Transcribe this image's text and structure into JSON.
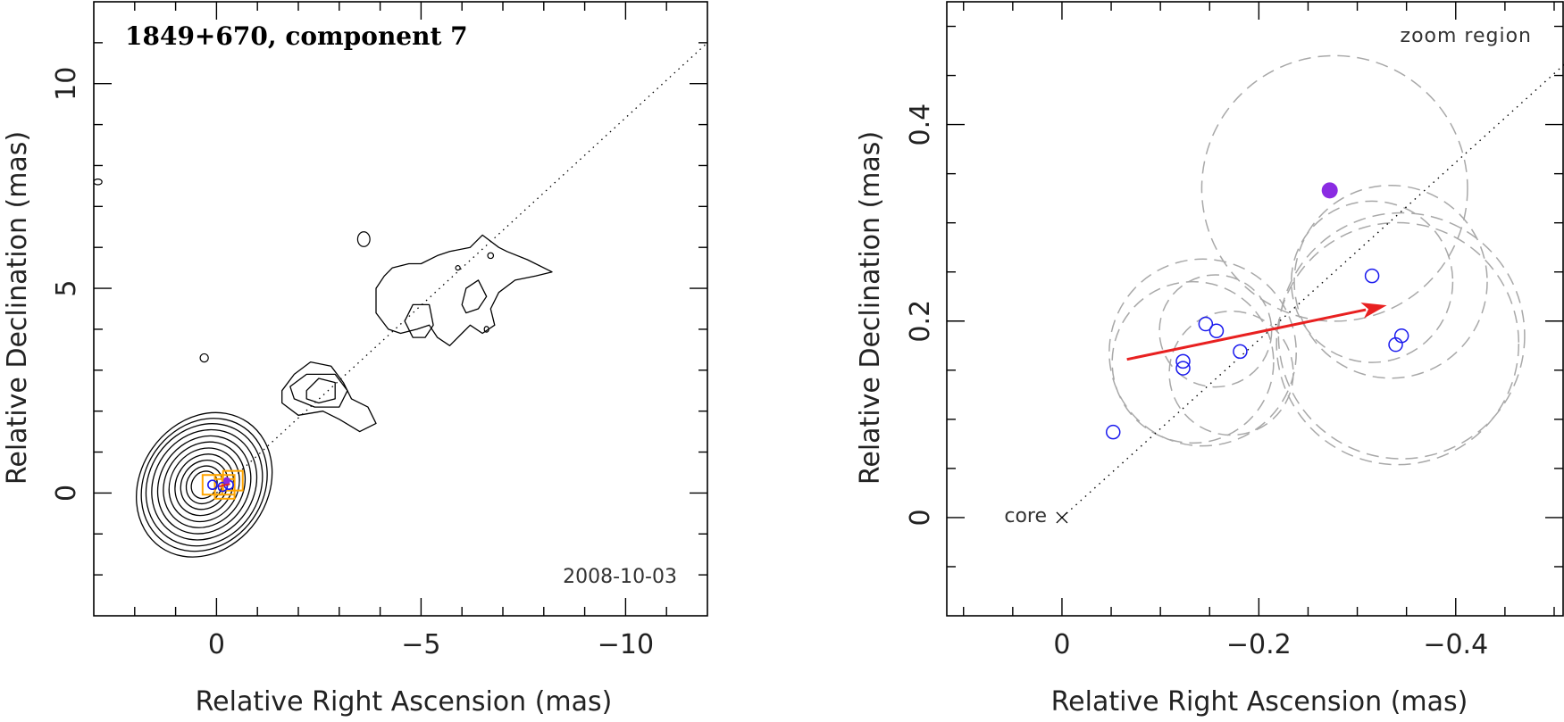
{
  "chart_data": [
    {
      "type": "scatter",
      "title": "1849+670, component 7",
      "annotation": "2008-10-03",
      "xlabel": "Relative Right Ascension (mas)",
      "ylabel": "Relative Declination (mas)",
      "xlim": [
        3,
        -12
      ],
      "ylim": [
        -3,
        12
      ],
      "xticks": [
        0,
        -5,
        -10
      ],
      "yticks": [
        0,
        5,
        10
      ],
      "grid": false,
      "reference_line": {
        "style": "dotted",
        "from": [
          0,
          0
        ],
        "to": [
          -12,
          11
        ]
      },
      "contours": [
        {
          "kind": "core",
          "center": [
            0.3,
            0.2
          ],
          "levels": [
            {
              "rx": 1.55,
              "ry": 1.55
            },
            {
              "rx": 1.45,
              "ry": 1.42
            },
            {
              "rx": 1.35,
              "ry": 1.3
            },
            {
              "rx": 1.22,
              "ry": 1.17
            },
            {
              "rx": 1.08,
              "ry": 1.04
            },
            {
              "rx": 0.95,
              "ry": 0.91
            },
            {
              "rx": 0.82,
              "ry": 0.78
            },
            {
              "rx": 0.68,
              "ry": 0.65
            },
            {
              "rx": 0.55,
              "ry": 0.52
            },
            {
              "rx": 0.42,
              "ry": 0.4
            },
            {
              "rx": 0.3,
              "ry": 0.29
            }
          ]
        },
        {
          "kind": "jet",
          "path": [
            [
              -1.6,
              2.5
            ],
            [
              -1.9,
              2.9
            ],
            [
              -2.3,
              3.2
            ],
            [
              -2.8,
              3.1
            ],
            [
              -3.1,
              2.7
            ],
            [
              -3.3,
              2.3
            ],
            [
              -3.7,
              2.1
            ],
            [
              -3.9,
              1.7
            ],
            [
              -3.5,
              1.5
            ],
            [
              -3.0,
              1.8
            ],
            [
              -2.6,
              2.0
            ],
            [
              -2.0,
              1.9
            ],
            [
              -1.6,
              2.2
            ]
          ]
        },
        {
          "kind": "jet",
          "path": [
            [
              -1.8,
              2.6
            ],
            [
              -2.2,
              2.9
            ],
            [
              -2.9,
              2.9
            ],
            [
              -3.2,
              2.5
            ],
            [
              -3.0,
              2.1
            ],
            [
              -2.4,
              2.1
            ],
            [
              -1.9,
              2.3
            ]
          ]
        },
        {
          "kind": "jet",
          "path": [
            [
              -2.2,
              2.5
            ],
            [
              -2.5,
              2.8
            ],
            [
              -2.9,
              2.7
            ],
            [
              -2.9,
              2.3
            ],
            [
              -2.5,
              2.2
            ],
            [
              -2.2,
              2.3
            ]
          ]
        },
        {
          "kind": "jet",
          "path": [
            [
              -3.9,
              4.4
            ],
            [
              -3.9,
              5.0
            ],
            [
              -4.1,
              5.3
            ],
            [
              -4.3,
              5.5
            ],
            [
              -4.7,
              5.6
            ],
            [
              -5.0,
              5.6
            ],
            [
              -5.4,
              5.8
            ],
            [
              -5.7,
              5.9
            ],
            [
              -6.2,
              6.0
            ],
            [
              -6.5,
              6.3
            ],
            [
              -6.9,
              6.0
            ],
            [
              -7.1,
              5.9
            ],
            [
              -7.6,
              5.7
            ],
            [
              -8.2,
              5.4
            ],
            [
              -7.8,
              5.3
            ],
            [
              -7.3,
              5.2
            ],
            [
              -6.9,
              4.9
            ],
            [
              -6.7,
              4.5
            ],
            [
              -6.8,
              4.1
            ],
            [
              -6.5,
              3.9
            ],
            [
              -6.2,
              4.1
            ],
            [
              -6.0,
              3.9
            ],
            [
              -5.7,
              3.6
            ],
            [
              -5.4,
              3.8
            ],
            [
              -5.2,
              4.1
            ],
            [
              -4.9,
              4.0
            ],
            [
              -4.5,
              3.9
            ],
            [
              -4.2,
              4.0
            ]
          ]
        },
        {
          "kind": "jet",
          "path": [
            [
              -4.6,
              4.2
            ],
            [
              -4.8,
              4.6
            ],
            [
              -5.2,
              4.6
            ],
            [
              -5.3,
              4.1
            ],
            [
              -5.1,
              3.8
            ],
            [
              -4.8,
              3.8
            ]
          ]
        },
        {
          "kind": "jet",
          "path": [
            [
              -6.0,
              4.6
            ],
            [
              -6.1,
              5.0
            ],
            [
              -6.4,
              5.2
            ],
            [
              -6.6,
              4.8
            ],
            [
              -6.4,
              4.5
            ],
            [
              -6.1,
              4.4
            ]
          ]
        },
        {
          "kind": "blob",
          "center": [
            -3.6,
            6.2
          ],
          "rx": 0.15,
          "ry": 0.18
        },
        {
          "kind": "blob",
          "center": [
            2.9,
            7.6
          ],
          "rx": 0.1,
          "ry": 0.07
        },
        {
          "kind": "blob",
          "center": [
            0.3,
            3.3
          ],
          "rx": 0.1,
          "ry": 0.1
        },
        {
          "kind": "blob",
          "center": [
            -6.7,
            5.8
          ],
          "rx": 0.07,
          "ry": 0.07
        },
        {
          "kind": "blob",
          "center": [
            -5.9,
            5.5
          ],
          "rx": 0.05,
          "ry": 0.05
        },
        {
          "kind": "blob",
          "center": [
            -6.6,
            4.0
          ],
          "rx": 0.05,
          "ry": 0.07
        }
      ],
      "markers": {
        "orange_squares": [
          [
            0.1,
            0.2
          ],
          [
            -0.2,
            0.2
          ],
          [
            -0.4,
            0.3
          ],
          [
            -0.2,
            0.1
          ]
        ],
        "blue_circles": [
          [
            0.1,
            0.2
          ],
          [
            -0.15,
            0.15
          ],
          [
            -0.3,
            0.2
          ]
        ],
        "purple_point": [
          -0.25,
          0.3
        ],
        "red_arrow": {
          "from": [
            -0.06,
            0.16
          ],
          "to": [
            -0.33,
            0.22
          ]
        }
      },
      "colors": {
        "contour": "#000000",
        "marker_orange": "#ffa500",
        "marker_blue": "#1a1aee",
        "marker_purple": "#8a2be2",
        "arrow": "#e82020"
      }
    },
    {
      "type": "scatter",
      "annotation": "zoom region",
      "core_label": "core",
      "xlabel": "Relative Right Ascension (mas)",
      "ylabel": "Relative Declination (mas)",
      "xlim": [
        0.117,
        -0.51
      ],
      "ylim": [
        -0.1,
        0.525
      ],
      "xticks": [
        0,
        -0.2,
        -0.4
      ],
      "xtick_labels": [
        "0",
        "−0.2",
        "−0.4"
      ],
      "yticks": [
        0,
        0.2,
        0.4
      ],
      "ytick_labels": [
        "0",
        "0.2",
        "0.4"
      ],
      "grid": false,
      "reference_line": {
        "style": "dotted",
        "from": [
          0,
          0
        ],
        "to": [
          -0.52,
          0.47
        ]
      },
      "core": [
        0,
        0
      ],
      "points": [
        {
          "x": -0.052,
          "y": 0.087
        },
        {
          "x": -0.123,
          "y": 0.159
        },
        {
          "x": -0.123,
          "y": 0.152
        },
        {
          "x": -0.146,
          "y": 0.197
        },
        {
          "x": -0.157,
          "y": 0.19
        },
        {
          "x": -0.181,
          "y": 0.169
        },
        {
          "x": -0.315,
          "y": 0.246
        },
        {
          "x": -0.339,
          "y": 0.176
        },
        {
          "x": -0.345,
          "y": 0.185
        }
      ],
      "purple_point": {
        "x": -0.272,
        "y": 0.333
      },
      "uncertainty_circles": [
        {
          "x": -0.133,
          "y": 0.158,
          "r": 0.082
        },
        {
          "x": -0.143,
          "y": 0.168,
          "r": 0.095
        },
        {
          "x": -0.172,
          "y": 0.147,
          "r": 0.063
        },
        {
          "x": -0.156,
          "y": 0.19,
          "r": 0.057
        },
        {
          "x": -0.277,
          "y": 0.335,
          "r": 0.135
        },
        {
          "x": -0.315,
          "y": 0.24,
          "r": 0.082
        },
        {
          "x": -0.334,
          "y": 0.24,
          "r": 0.098
        },
        {
          "x": -0.341,
          "y": 0.177,
          "r": 0.123
        },
        {
          "x": -0.345,
          "y": 0.185,
          "r": 0.125
        }
      ],
      "trend_arrow": {
        "from": {
          "x": -0.066,
          "y": 0.161
        },
        "to": {
          "x": -0.33,
          "y": 0.216
        }
      },
      "colors": {
        "points": "#1a1aee",
        "purple": "#8a2be2",
        "circles": "#a8a8a8",
        "arrow": "#e82020",
        "reference_line": "#000000"
      }
    }
  ]
}
